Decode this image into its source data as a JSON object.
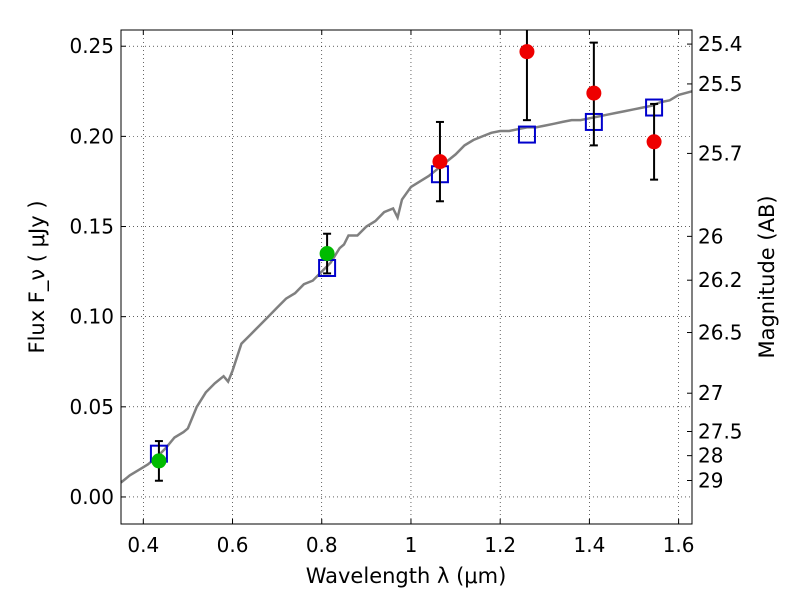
{
  "chart_data": {
    "type": "scatter",
    "title": "",
    "xlabel": "Wavelength  λ (μm)",
    "ylabel": "Flux  F_ν  ( μJy )",
    "y2label": "Magnitude (AB)",
    "xlim": [
      0.35,
      1.63
    ],
    "ylim": [
      -0.015,
      0.259
    ],
    "grid": true,
    "x_ticks": [
      {
        "value": 0.4,
        "label": "0.4"
      },
      {
        "value": 0.6,
        "label": "0.6"
      },
      {
        "value": 0.8,
        "label": "0.8"
      },
      {
        "value": 1.0,
        "label": "1"
      },
      {
        "value": 1.2,
        "label": "1.2"
      },
      {
        "value": 1.4,
        "label": "1.4"
      },
      {
        "value": 1.6,
        "label": "1.6"
      }
    ],
    "y_ticks": [
      {
        "value": 0.0,
        "label": "0.00"
      },
      {
        "value": 0.05,
        "label": "0.05"
      },
      {
        "value": 0.1,
        "label": "0.10"
      },
      {
        "value": 0.15,
        "label": "0.15"
      },
      {
        "value": 0.2,
        "label": "0.20"
      },
      {
        "value": 0.25,
        "label": "0.25"
      }
    ],
    "y2_ticks": [
      {
        "mag": 25.4,
        "label": "25.4"
      },
      {
        "mag": 25.5,
        "label": "25.5"
      },
      {
        "mag": 25.7,
        "label": "25.7"
      },
      {
        "mag": 26.0,
        "label": "26"
      },
      {
        "mag": 26.2,
        "label": "26.2"
      },
      {
        "mag": 26.5,
        "label": "26.5"
      },
      {
        "mag": 27.0,
        "label": "27"
      },
      {
        "mag": 27.5,
        "label": "27.5"
      },
      {
        "mag": 28.0,
        "label": "28"
      },
      {
        "mag": 29.0,
        "label": "29"
      }
    ],
    "series": [
      {
        "type": "line",
        "color": "#808080",
        "points": [
          [
            0.35,
            0.008
          ],
          [
            0.37,
            0.012
          ],
          [
            0.39,
            0.015
          ],
          [
            0.41,
            0.018
          ],
          [
            0.43,
            0.022
          ],
          [
            0.45,
            0.027
          ],
          [
            0.47,
            0.033
          ],
          [
            0.49,
            0.036
          ],
          [
            0.5,
            0.038
          ],
          [
            0.52,
            0.05
          ],
          [
            0.54,
            0.058
          ],
          [
            0.56,
            0.063
          ],
          [
            0.58,
            0.067
          ],
          [
            0.59,
            0.064
          ],
          [
            0.6,
            0.07
          ],
          [
            0.62,
            0.085
          ],
          [
            0.64,
            0.09
          ],
          [
            0.66,
            0.095
          ],
          [
            0.68,
            0.1
          ],
          [
            0.7,
            0.105
          ],
          [
            0.72,
            0.11
          ],
          [
            0.74,
            0.113
          ],
          [
            0.76,
            0.118
          ],
          [
            0.78,
            0.12
          ],
          [
            0.8,
            0.125
          ],
          [
            0.82,
            0.13
          ],
          [
            0.84,
            0.138
          ],
          [
            0.85,
            0.14
          ],
          [
            0.86,
            0.145
          ],
          [
            0.88,
            0.145
          ],
          [
            0.9,
            0.15
          ],
          [
            0.92,
            0.153
          ],
          [
            0.94,
            0.158
          ],
          [
            0.96,
            0.16
          ],
          [
            0.97,
            0.155
          ],
          [
            0.98,
            0.165
          ],
          [
            1.0,
            0.172
          ],
          [
            1.02,
            0.175
          ],
          [
            1.04,
            0.178
          ],
          [
            1.06,
            0.182
          ],
          [
            1.08,
            0.186
          ],
          [
            1.1,
            0.19
          ],
          [
            1.12,
            0.195
          ],
          [
            1.14,
            0.198
          ],
          [
            1.16,
            0.2
          ],
          [
            1.18,
            0.202
          ],
          [
            1.2,
            0.203
          ],
          [
            1.22,
            0.203
          ],
          [
            1.24,
            0.204
          ],
          [
            1.26,
            0.205
          ],
          [
            1.28,
            0.205
          ],
          [
            1.3,
            0.206
          ],
          [
            1.32,
            0.207
          ],
          [
            1.34,
            0.208
          ],
          [
            1.36,
            0.209
          ],
          [
            1.38,
            0.209
          ],
          [
            1.4,
            0.21
          ],
          [
            1.42,
            0.211
          ],
          [
            1.44,
            0.212
          ],
          [
            1.46,
            0.213
          ],
          [
            1.48,
            0.214
          ],
          [
            1.5,
            0.215
          ],
          [
            1.52,
            0.216
          ],
          [
            1.54,
            0.217
          ],
          [
            1.56,
            0.219
          ],
          [
            1.58,
            0.22
          ],
          [
            1.6,
            0.223
          ],
          [
            1.63,
            0.225
          ]
        ]
      },
      {
        "type": "squares",
        "color": "#0000cc",
        "points": [
          [
            0.435,
            0.024
          ],
          [
            0.812,
            0.127
          ],
          [
            1.065,
            0.179
          ],
          [
            1.26,
            0.201
          ],
          [
            1.41,
            0.208
          ],
          [
            1.545,
            0.216
          ]
        ]
      },
      {
        "type": "circles",
        "color": "#00bb00",
        "points": [
          {
            "x": 0.435,
            "y": 0.02,
            "ylo": 0.009,
            "yhi": 0.031
          },
          {
            "x": 0.812,
            "y": 0.135,
            "ylo": 0.124,
            "yhi": 0.146
          }
        ]
      },
      {
        "type": "circles",
        "color": "#ee0000",
        "points": [
          {
            "x": 1.065,
            "y": 0.186,
            "ylo": 0.164,
            "yhi": 0.208
          },
          {
            "x": 1.26,
            "y": 0.247,
            "ylo": 0.209,
            "yhi": 0.262
          },
          {
            "x": 1.41,
            "y": 0.224,
            "ylo": 0.195,
            "yhi": 0.252
          },
          {
            "x": 1.545,
            "y": 0.197,
            "ylo": 0.176,
            "yhi": 0.218
          }
        ]
      }
    ]
  }
}
